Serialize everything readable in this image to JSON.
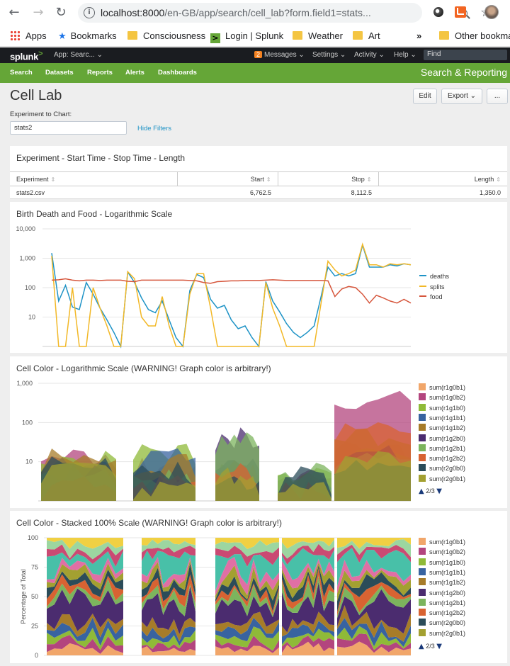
{
  "browser": {
    "url_host": "localhost:8000",
    "url_rest": "/en-GB/app/search/cell_lab?form.field1=stats...",
    "bookmarks": [
      "Apps",
      "Bookmarks",
      "Consciousness",
      "Login | Splunk",
      "Weather",
      "Art",
      "»",
      "Other bookma"
    ]
  },
  "splunk": {
    "logo": "splunk",
    "logo_mark": ">",
    "app_selector": "App: Searc... ⌄",
    "messages_count": "2",
    "messages": "Messages ⌄",
    "settings": "Settings ⌄",
    "activity": "Activity ⌄",
    "help": "Help ⌄",
    "find_placeholder": "Find",
    "nav": [
      "Search",
      "Datasets",
      "Reports",
      "Alerts",
      "Dashboards"
    ],
    "app_title": "Search & Reporting"
  },
  "page": {
    "title": "Cell Lab",
    "edit": "Edit",
    "export": "Export ⌄",
    "more": "...",
    "form_label": "Experiment to Chart:",
    "form_value": "stats2",
    "hide_filters": "Hide Filters"
  },
  "table_panel": {
    "title": "Experiment - Start Time - Stop Time - Length",
    "columns": [
      "Experiment",
      "Start",
      "Stop",
      "Length"
    ],
    "rows": [
      [
        "stats2.csv",
        "6,762.5",
        "8,112.5",
        "1,350.0"
      ]
    ]
  },
  "colors": {
    "deaths": "#1e93c6",
    "splits": "#f2b827",
    "food": "#d6563c",
    "series": [
      "#f1a66a",
      "#b3457e",
      "#8fba38",
      "#3863a0",
      "#a77c29",
      "#4b2c6f",
      "#7cb45d",
      "#d86332",
      "#2b4c59",
      "#a3a031"
    ]
  },
  "chart_data": [
    {
      "type": "line",
      "title": "Birth Death and Food - Logarithmic Scale",
      "yscale": "log",
      "yticks": [
        "10",
        "100",
        "1,000",
        "10,000"
      ],
      "ylim": [
        1,
        10000
      ],
      "legend": "right",
      "x": [
        0,
        1,
        2,
        3,
        4,
        5,
        6,
        7,
        8,
        9,
        10,
        11,
        12,
        13,
        14,
        15,
        16,
        17,
        18,
        19,
        20,
        21,
        22,
        23,
        24,
        25,
        26,
        27,
        28,
        29,
        30,
        31,
        32,
        33,
        34,
        35,
        36,
        37,
        38,
        39,
        40,
        41,
        42,
        43,
        44,
        45,
        46,
        47,
        48,
        49,
        50,
        51,
        52
      ],
      "series": [
        {
          "name": "deaths",
          "values": [
            1500,
            35,
            120,
            22,
            18,
            150,
            60,
            20,
            8,
            3,
            1,
            340,
            150,
            45,
            18,
            14,
            35,
            8,
            2,
            1,
            80,
            280,
            220,
            40,
            20,
            25,
            8,
            4,
            5,
            2,
            1,
            160,
            35,
            15,
            6,
            3,
            2,
            3,
            5,
            50,
            500,
            250,
            300,
            250,
            300,
            2800,
            500,
            500,
            500,
            600,
            550,
            650,
            600
          ]
        },
        {
          "name": "splits",
          "values": [
            1200,
            1,
            1,
            100,
            1,
            1,
            100,
            20,
            5,
            1,
            1,
            350,
            200,
            10,
            5,
            5,
            50,
            5,
            1,
            1,
            60,
            300,
            300,
            20,
            1,
            1,
            1,
            1,
            1,
            1,
            1,
            150,
            20,
            5,
            1,
            1,
            1,
            1,
            1,
            30,
            800,
            400,
            250,
            300,
            400,
            3000,
            600,
            600,
            500,
            650,
            600,
            650,
            600
          ]
        },
        {
          "name": "food",
          "values": [
            180,
            185,
            200,
            180,
            170,
            180,
            180,
            175,
            180,
            180,
            180,
            165,
            160,
            180,
            180,
            180,
            180,
            180,
            180,
            180,
            175,
            170,
            150,
            140,
            160,
            165,
            170,
            170,
            175,
            175,
            175,
            180,
            185,
            180,
            175,
            175,
            175,
            175,
            175,
            175,
            170,
            50,
            90,
            110,
            100,
            60,
            30,
            55,
            45,
            35,
            30,
            40,
            30
          ]
        }
      ]
    },
    {
      "type": "area",
      "title": "Cell Color - Logarithmic Scale (WARNING! Graph color is arbitrary!)",
      "yscale": "log",
      "yticks": [
        "10",
        "100",
        "1,000"
      ],
      "ylim": [
        1,
        1000
      ],
      "legend": "right",
      "series_names": [
        "sum(r1g0b1)",
        "sum(r1g0b2)",
        "sum(r1g1b0)",
        "sum(r1g1b1)",
        "sum(r1g1b2)",
        "sum(r1g2b0)",
        "sum(r1g2b1)",
        "sum(r1g2b2)",
        "sum(r2g0b0)",
        "sum(r2g0b1)"
      ],
      "pager": "2/3"
    },
    {
      "type": "area",
      "title": "Cell Color - Stacked 100% Scale (WARNING! Graph color is arbitrary!)",
      "stacking": "100%",
      "ylabel": "Percentage of Total",
      "yticks": [
        "0",
        "25",
        "50",
        "75",
        "100"
      ],
      "ylim": [
        0,
        100
      ],
      "legend": "right",
      "series_names": [
        "sum(r1g0b1)",
        "sum(r1g0b2)",
        "sum(r1g1b0)",
        "sum(r1g1b1)",
        "sum(r1g1b2)",
        "sum(r1g2b0)",
        "sum(r1g2b1)",
        "sum(r1g2b2)",
        "sum(r2g0b0)",
        "sum(r2g0b1)"
      ],
      "pager": "2/3"
    }
  ]
}
